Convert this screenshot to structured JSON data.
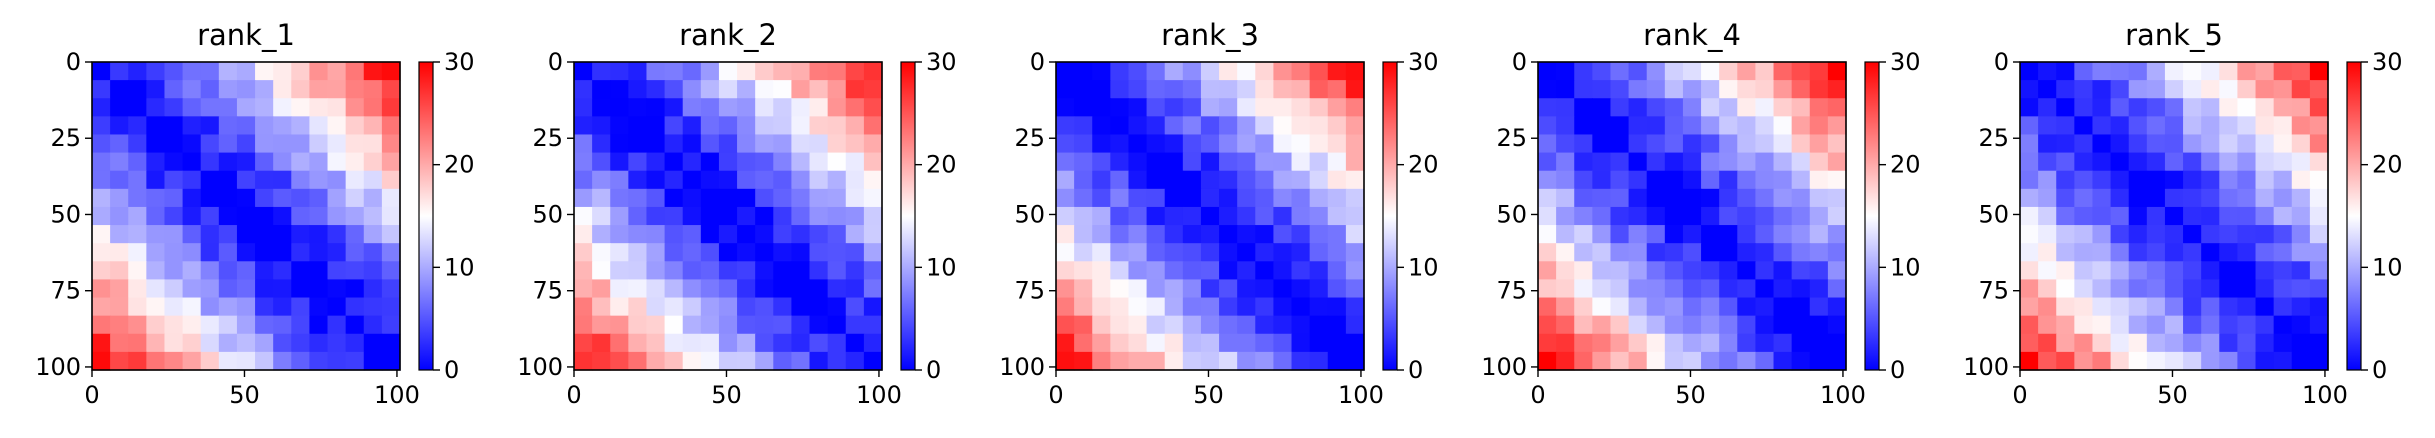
{
  "chart_data": [
    {
      "type": "heatmap",
      "title": "rank_1",
      "x_ticks": [
        0,
        50,
        100
      ],
      "y_ticks": [
        0,
        25,
        50,
        75,
        100
      ],
      "xlim": [
        0,
        101
      ],
      "ylim": [
        101,
        0
      ],
      "colorbar": {
        "ticks": [
          0,
          10,
          20,
          30
        ],
        "range": [
          0,
          30
        ],
        "colormap": "bwr"
      },
      "pattern": {
        "near_diagonal": 0,
        "far_corner": 30,
        "block_size": 6
      }
    },
    {
      "type": "heatmap",
      "title": "rank_2",
      "x_ticks": [
        0,
        50,
        100
      ],
      "y_ticks": [
        0,
        25,
        50,
        75,
        100
      ],
      "xlim": [
        0,
        101
      ],
      "ylim": [
        101,
        0
      ],
      "colorbar": {
        "ticks": [
          0,
          10,
          20,
          30
        ],
        "range": [
          0,
          30
        ],
        "colormap": "bwr"
      },
      "pattern": {
        "near_diagonal": 0,
        "far_corner": 30,
        "block_size": 6
      }
    },
    {
      "type": "heatmap",
      "title": "rank_3",
      "x_ticks": [
        0,
        50,
        100
      ],
      "y_ticks": [
        0,
        25,
        50,
        75,
        100
      ],
      "xlim": [
        0,
        101
      ],
      "ylim": [
        101,
        0
      ],
      "colorbar": {
        "ticks": [
          0,
          10,
          20,
          30
        ],
        "range": [
          0,
          30
        ],
        "colormap": "bwr"
      },
      "pattern": {
        "near_diagonal": 0,
        "far_corner": 30,
        "block_size": 6
      }
    },
    {
      "type": "heatmap",
      "title": "rank_4",
      "x_ticks": [
        0,
        50,
        100
      ],
      "y_ticks": [
        0,
        25,
        50,
        75,
        100
      ],
      "xlim": [
        0,
        101
      ],
      "ylim": [
        101,
        0
      ],
      "colorbar": {
        "ticks": [
          0,
          10,
          20,
          30
        ],
        "range": [
          0,
          30
        ],
        "colormap": "bwr"
      },
      "pattern": {
        "near_diagonal": 0,
        "far_corner": 30,
        "block_size": 6
      }
    },
    {
      "type": "heatmap",
      "title": "rank_5",
      "x_ticks": [
        0,
        50,
        100
      ],
      "y_ticks": [
        0,
        25,
        50,
        75,
        100
      ],
      "xlim": [
        0,
        101
      ],
      "ylim": [
        101,
        0
      ],
      "colorbar": {
        "ticks": [
          0,
          10,
          20,
          30
        ],
        "range": [
          0,
          30
        ],
        "colormap": "bwr"
      },
      "pattern": {
        "near_diagonal": 0,
        "far_corner": 30,
        "block_size": 6
      }
    }
  ],
  "colors": {
    "low": "#0000ff",
    "mid": "#ffffff",
    "high": "#ff0000",
    "axis": "#000000"
  }
}
